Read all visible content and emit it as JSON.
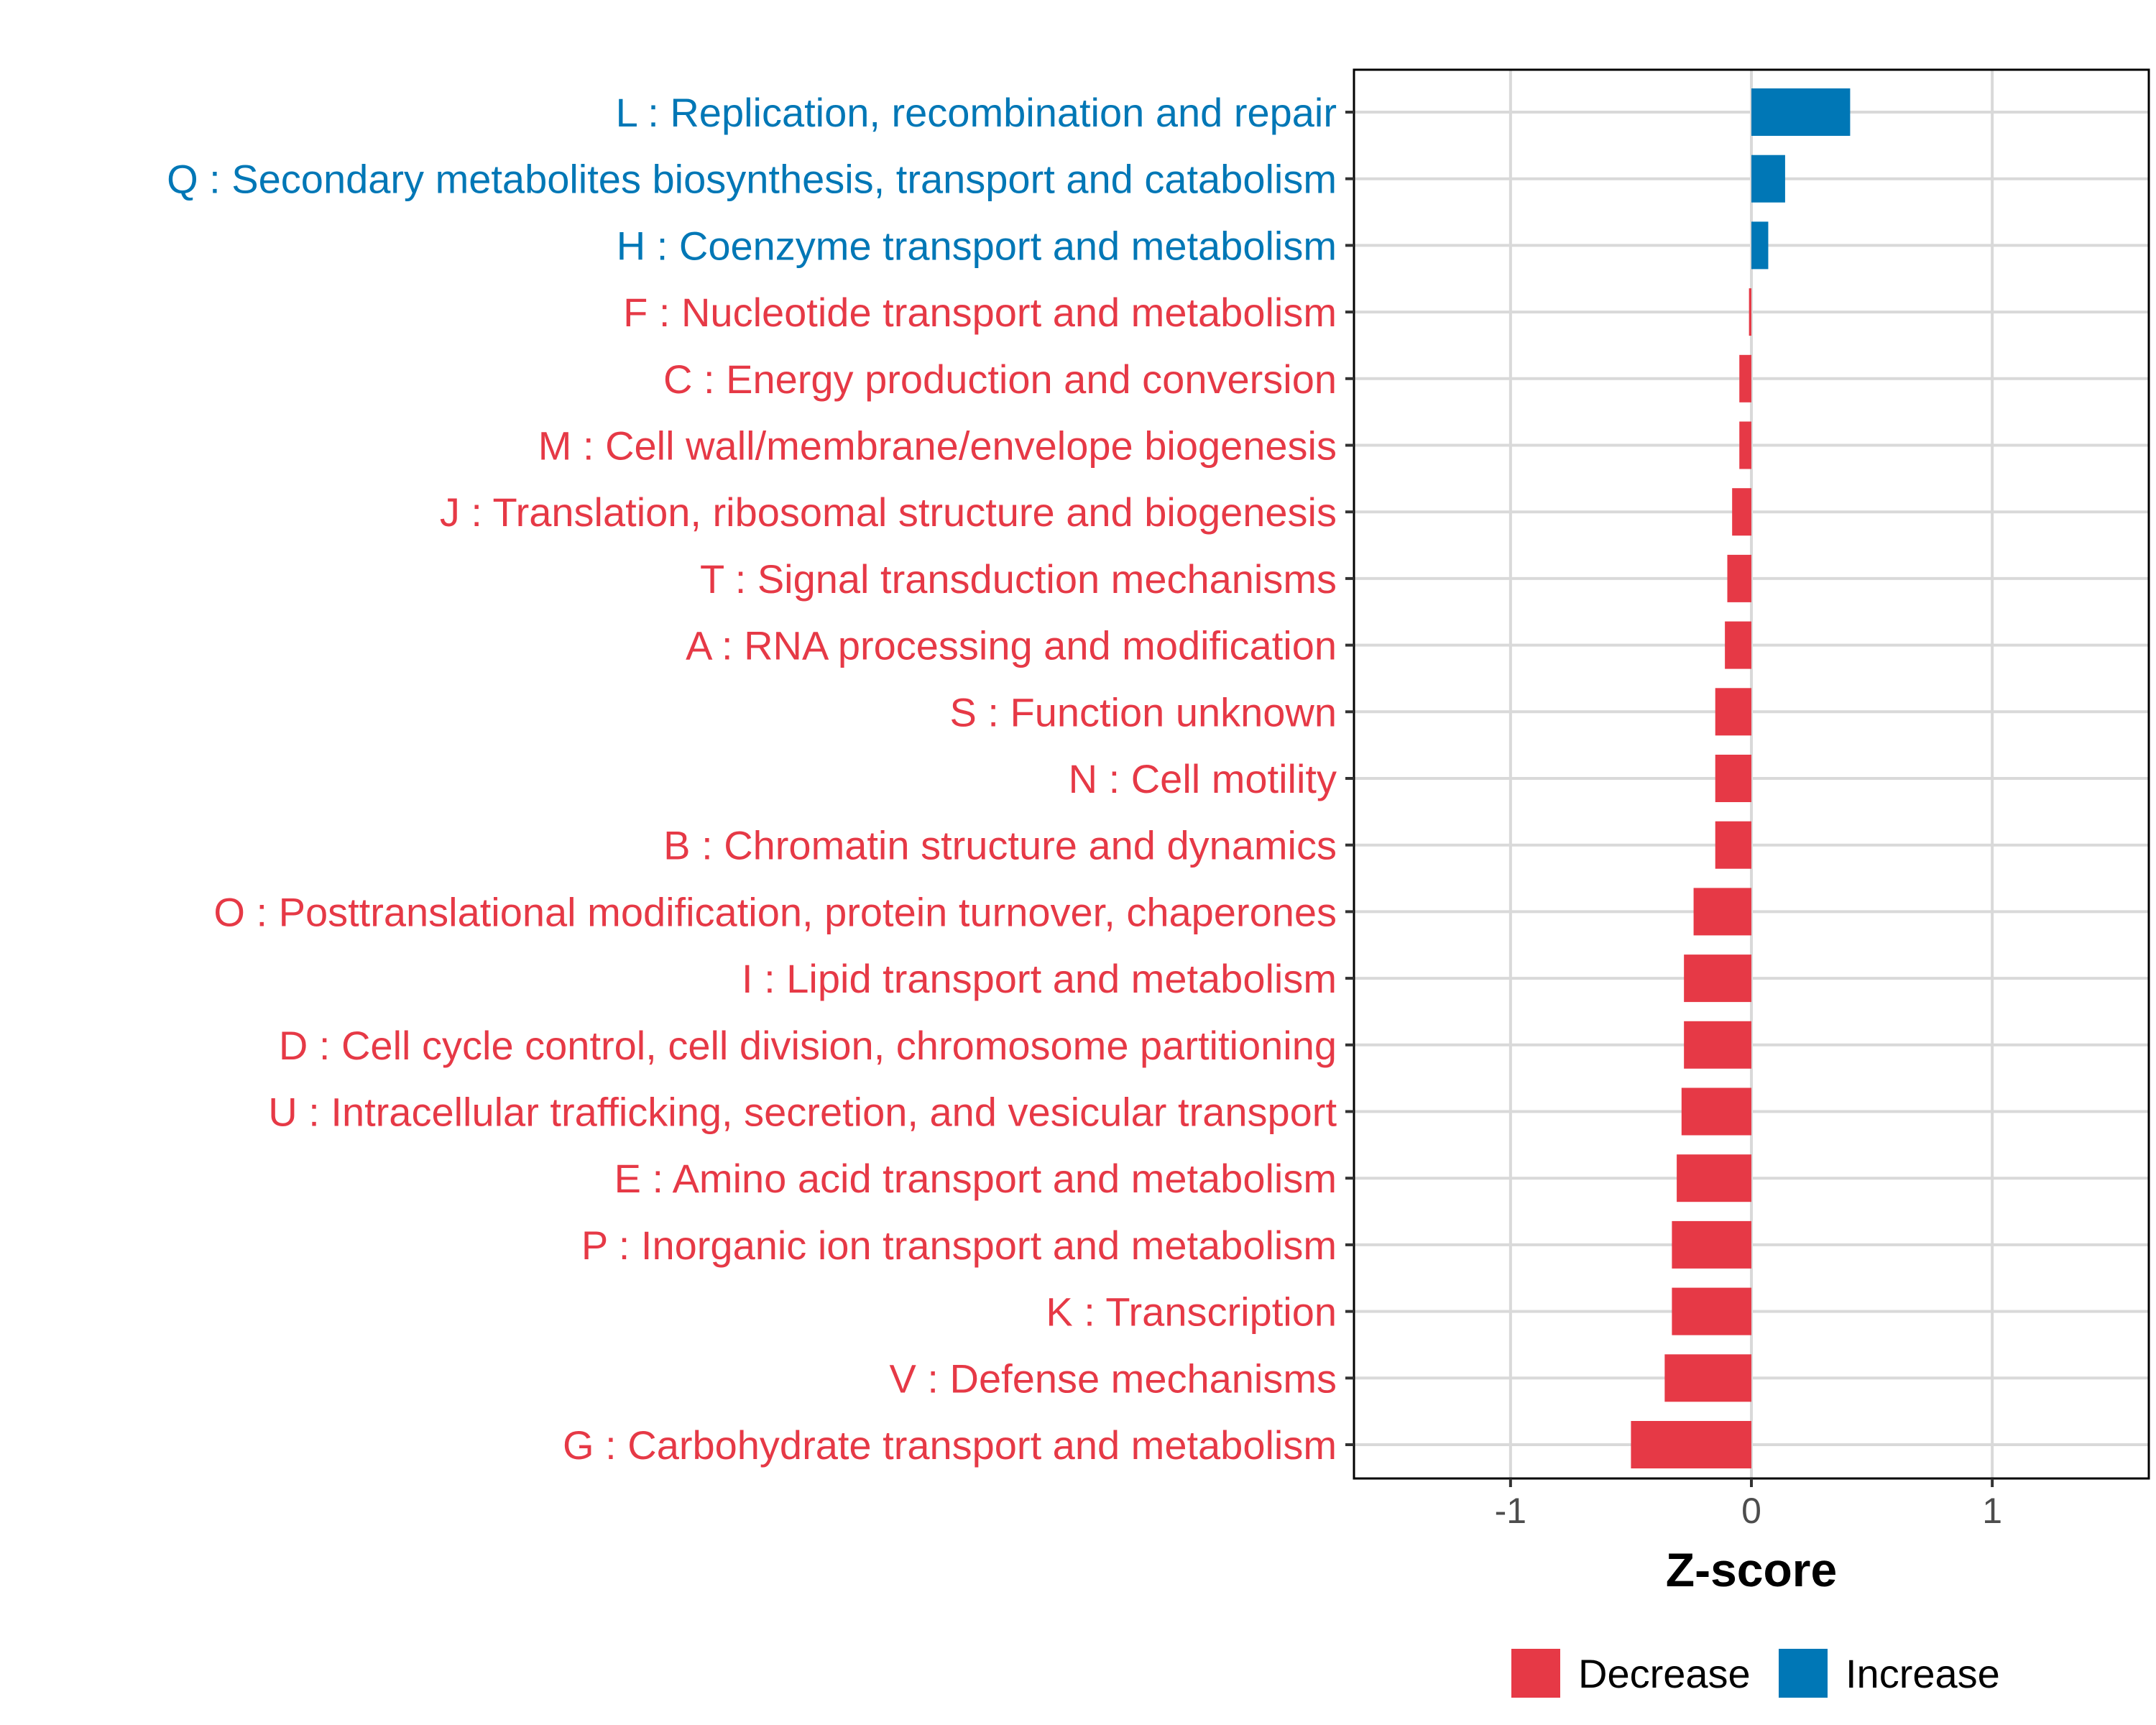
{
  "chart_data": {
    "type": "bar",
    "orientation": "horizontal",
    "xlabel": "Z-score",
    "xlim": [
      -1.65,
      1.65
    ],
    "xticks": [
      -1,
      0,
      1
    ],
    "xtick_labels": [
      "-1",
      "0",
      "1"
    ],
    "grid": true,
    "legend": {
      "placement": "bottom",
      "entries": [
        {
          "name": "Decrease",
          "color": "#E63946"
        },
        {
          "name": "Increase",
          "color": "#0077B6"
        }
      ]
    },
    "colors": {
      "Decrease": "#E63946",
      "Increase": "#0077B6"
    },
    "bars": [
      {
        "label": "L : Replication, recombination and repair",
        "value": 0.41,
        "group": "Increase"
      },
      {
        "label": "Q : Secondary metabolites biosynthesis, transport and catabolism",
        "value": 0.14,
        "group": "Increase"
      },
      {
        "label": "H : Coenzyme transport and metabolism",
        "value": 0.07,
        "group": "Increase"
      },
      {
        "label": "F : Nucleotide transport and metabolism",
        "value": -0.01,
        "group": "Decrease"
      },
      {
        "label": "C : Energy production and conversion",
        "value": -0.05,
        "group": "Decrease"
      },
      {
        "label": "M : Cell wall/membrane/envelope biogenesis",
        "value": -0.05,
        "group": "Decrease"
      },
      {
        "label": "J : Translation, ribosomal structure and biogenesis",
        "value": -0.08,
        "group": "Decrease"
      },
      {
        "label": "T : Signal transduction mechanisms",
        "value": -0.1,
        "group": "Decrease"
      },
      {
        "label": "A : RNA processing and modification",
        "value": -0.11,
        "group": "Decrease"
      },
      {
        "label": "S : Function unknown",
        "value": -0.15,
        "group": "Decrease"
      },
      {
        "label": "N : Cell motility",
        "value": -0.15,
        "group": "Decrease"
      },
      {
        "label": "B : Chromatin structure and dynamics",
        "value": -0.15,
        "group": "Decrease"
      },
      {
        "label": "O : Posttranslational modification, protein turnover, chaperones",
        "value": -0.24,
        "group": "Decrease"
      },
      {
        "label": "I : Lipid transport and metabolism",
        "value": -0.28,
        "group": "Decrease"
      },
      {
        "label": "D : Cell cycle control, cell division, chromosome partitioning",
        "value": -0.28,
        "group": "Decrease"
      },
      {
        "label": "U : Intracellular trafficking, secretion, and vesicular transport",
        "value": -0.29,
        "group": "Decrease"
      },
      {
        "label": "E : Amino acid transport and metabolism",
        "value": -0.31,
        "group": "Decrease"
      },
      {
        "label": "P : Inorganic ion transport and metabolism",
        "value": -0.33,
        "group": "Decrease"
      },
      {
        "label": "K : Transcription",
        "value": -0.33,
        "group": "Decrease"
      },
      {
        "label": "V : Defense mechanisms",
        "value": -0.36,
        "group": "Decrease"
      },
      {
        "label": "G : Carbohydrate transport and metabolism",
        "value": -0.5,
        "group": "Decrease"
      }
    ]
  }
}
